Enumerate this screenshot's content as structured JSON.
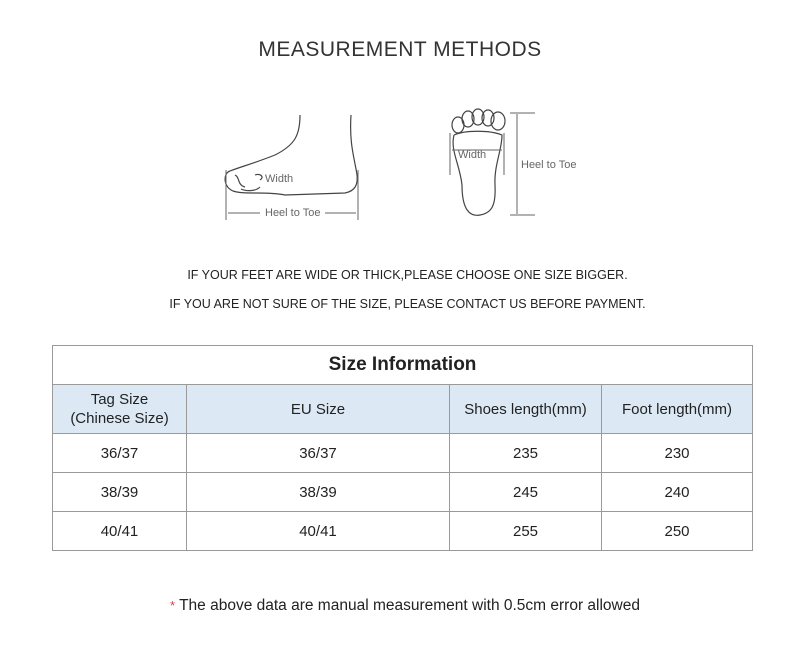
{
  "title": "MEASUREMENT METHODS",
  "diagrams": {
    "side": {
      "width_label": "Width",
      "length_label": "Heel to Toe"
    },
    "sole": {
      "width_label": "Width",
      "length_label": "Heel to Toe"
    }
  },
  "notes": [
    "IF YOUR FEET ARE WIDE OR THICK,PLEASE CHOOSE ONE SIZE BIGGER.",
    "IF YOU ARE NOT SURE OF THE SIZE, PLEASE CONTACT US BEFORE PAYMENT."
  ],
  "table": {
    "caption": "Size Information",
    "headers": [
      "Tag Size\n(Chinese Size)",
      "EU Size",
      "Shoes length(mm)",
      "Foot length(mm)"
    ],
    "header_tag_line1": "Tag Size",
    "header_tag_line2": "(Chinese Size)",
    "rows": [
      [
        "36/37",
        "36/37",
        "235",
        "230"
      ],
      [
        "38/39",
        "38/39",
        "245",
        "240"
      ],
      [
        "40/41",
        "40/41",
        "255",
        "250"
      ]
    ],
    "header_bg": "#dce9f5"
  },
  "footnote": {
    "marker": "*",
    "text": "The above data are manual measurement with 0.5cm error allowed",
    "marker_color": "#e04040"
  }
}
